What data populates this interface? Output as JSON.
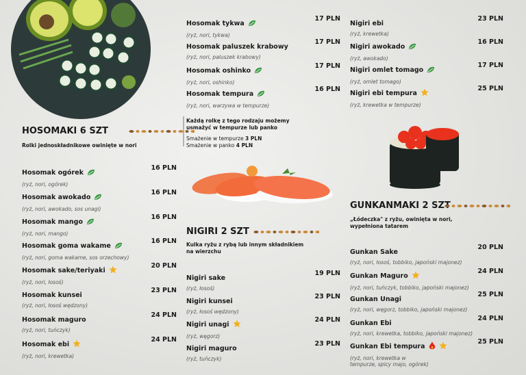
{
  "hosomaki": {
    "title": "HOSOMAKI 6 SZT",
    "subtitle": "Rolki jednoskładnikowe owinięte w nori",
    "items": [
      {
        "name": "Hosomak ogórek",
        "description": "(ryż, nori, ogórek)",
        "price": "16 PLN"
      },
      {
        "name": "Hosomak awokado",
        "description": "(ryż, nori, awokado, sos unagi)",
        "price": "16 PLN"
      },
      {
        "name": "Hosomak mango",
        "description": "(ryż, nori, mango)",
        "price": "16 PLN"
      },
      {
        "name": "Hosomak goma wakame",
        "description": "(ryż, nori, goma wakame, sos orzechowy)",
        "price": "16 PLN"
      },
      {
        "name": "Hosomak sake/teriyaki",
        "description": "(ryż, nori, łosoś)",
        "price": "20 PLN"
      },
      {
        "name": "Hosomak kunsei",
        "description": "(ryż, nori, łosoś wędzony)",
        "price": "23 PLN"
      },
      {
        "name": "Hosomak maguro",
        "description": "(ryż, nori, tuńczyk)",
        "price": "24 PLN"
      },
      {
        "name": "Hosomak ebi",
        "description": "(ryż, nori, krewetka)",
        "price": "24 PLN"
      },
      {
        "name": "Hosomak tykwa",
        "description": "(ryż, nori, tykwa)",
        "price": "17 PLN"
      },
      {
        "name": "Hosomak paluszek krabowy",
        "description": "(ryż, nori, paluszek krabowy)",
        "price": "17 PLN"
      },
      {
        "name": "Hosomak oshinko",
        "description": "(ryż, nori, oshinko)",
        "price": "17 PLN"
      },
      {
        "name": "Hosomak tempura",
        "description": "(ryż, nori, warzywa w tempurze)",
        "price": "16 PLN"
      }
    ]
  },
  "note": {
    "text": "Każdą rolkę z tego rodzaju możemy usmażyć w tempurze lub panko",
    "options": [
      {
        "label": "Smażenie w tempurze",
        "price": "3 PLN"
      },
      {
        "label": "Smażenie w panko",
        "price": "4 PLN"
      }
    ]
  },
  "nigiri": {
    "title": "NIGIRI 2 SZT",
    "subtitle": "Kulka ryżu z rybą lub innym składnikiem na wierzchu",
    "items": [
      {
        "name": "Nigiri sake",
        "description": "(ryż, łosoś)",
        "price": "19 PLN"
      },
      {
        "name": "Nigiri kunsei",
        "description": "(ryż, łosoś wędzony)",
        "price": "23 PLN"
      },
      {
        "name": "Nigiri unagi",
        "description": "(ryż, węgorz)",
        "price": "24 PLN"
      },
      {
        "name": "Nigiri maguro",
        "description": "(ryż, tuńczyk)",
        "price": "23 PLN"
      },
      {
        "name": "Nigiri ebi",
        "description": "(ryż, krewetka)",
        "price": "23 PLN"
      },
      {
        "name": "Nigiri awokado",
        "description": "(ryż, awokado)",
        "price": "16 PLN"
      },
      {
        "name": "Nigiri omlet tomago",
        "description": "(ryż, omlet tomago)",
        "price": "17 PLN"
      },
      {
        "name": "Nigiri ebi tempura",
        "description": "(ryż, krewetka w tempurze)",
        "price": "25 PLN"
      }
    ]
  },
  "gunkanmaki": {
    "title": "GUNKANMAKI 2 SZT",
    "subtitle": "„Łódeczka\" z ryżu, owinięta w nori, wypełniona tatarem",
    "items": [
      {
        "name": "Gunkan Sake",
        "description": "(ryż, nori, łosoś, tobbiko, japoński majonez)",
        "price": "20 PLN"
      },
      {
        "name": "Gunkan Maguro",
        "description": "(ryż, nori, tuńczyk, tobbiko, japoński majonez)",
        "price": "24 PLN"
      },
      {
        "name": "Gunkan Unagi",
        "description": "(ryż, nori, węgorz, tobbiko, japoński majonez)",
        "price": "25 PLN"
      },
      {
        "name": "Gunkan Ebi",
        "description": "(ryż, nori, krewetka, tobbiko, japoński majonez)",
        "price": "24 PLN"
      },
      {
        "name": "Gunkan Ebi tempura",
        "description": "(ryż, nori, krewetka w tempurze, spicy majo, ogórek)",
        "price": "25 PLN"
      }
    ]
  }
}
